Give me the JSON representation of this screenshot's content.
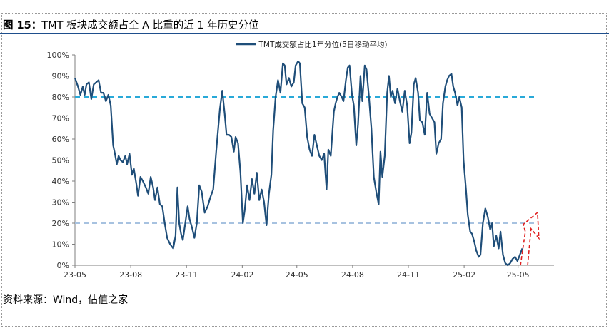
{
  "figure": {
    "label": "图 15：",
    "title": "TMT 板块成交额占全 A 比重的近 1 年历史分位",
    "source": "资料来源：Wind，估值之家"
  },
  "chart_data": {
    "type": "line",
    "title": "",
    "legend": {
      "position": "top-center"
    },
    "x_ticks": [
      "23-05",
      "23-08",
      "23-11",
      "24-02",
      "24-05",
      "24-08",
      "24-11",
      "25-02",
      "25-05"
    ],
    "x_tick_dates": [
      "2023-05-01",
      "2023-08-01",
      "2023-11-01",
      "2024-02-01",
      "2024-05-01",
      "2024-08-01",
      "2024-11-01",
      "2025-02-01",
      "2025-05-01"
    ],
    "y_ticks": [
      "0%",
      "10%",
      "20%",
      "30%",
      "40%",
      "50%",
      "60%",
      "70%",
      "80%",
      "90%",
      "100%"
    ],
    "ylim": [
      0,
      100
    ],
    "grid": false,
    "series": [
      {
        "name": "TMT成交额占比1年分位(5日移动平均)",
        "color": "#1f4e79",
        "points": [
          [
            "2023-05-01",
            89
          ],
          [
            "2023-05-06",
            85
          ],
          [
            "2023-05-10",
            81
          ],
          [
            "2023-05-14",
            85
          ],
          [
            "2023-05-17",
            81
          ],
          [
            "2023-05-20",
            86
          ],
          [
            "2023-05-24",
            87
          ],
          [
            "2023-05-28",
            79
          ],
          [
            "2023-06-01",
            86
          ],
          [
            "2023-06-05",
            87
          ],
          [
            "2023-06-09",
            88
          ],
          [
            "2023-06-13",
            82
          ],
          [
            "2023-06-17",
            82
          ],
          [
            "2023-06-21",
            78
          ],
          [
            "2023-06-25",
            81
          ],
          [
            "2023-06-29",
            76
          ],
          [
            "2023-07-03",
            57
          ],
          [
            "2023-07-06",
            53
          ],
          [
            "2023-07-09",
            48
          ],
          [
            "2023-07-12",
            52
          ],
          [
            "2023-07-15",
            50
          ],
          [
            "2023-07-19",
            49
          ],
          [
            "2023-07-23",
            52
          ],
          [
            "2023-07-26",
            48
          ],
          [
            "2023-07-30",
            53
          ],
          [
            "2023-08-03",
            43
          ],
          [
            "2023-08-06",
            46
          ],
          [
            "2023-08-10",
            39
          ],
          [
            "2023-08-13",
            33
          ],
          [
            "2023-08-17",
            42
          ],
          [
            "2023-08-21",
            40
          ],
          [
            "2023-08-26",
            37
          ],
          [
            "2023-08-30",
            34
          ],
          [
            "2023-09-03",
            42
          ],
          [
            "2023-09-07",
            37
          ],
          [
            "2023-09-10",
            31
          ],
          [
            "2023-09-14",
            37
          ],
          [
            "2023-09-18",
            29
          ],
          [
            "2023-09-22",
            28
          ],
          [
            "2023-09-26",
            20
          ],
          [
            "2023-09-30",
            13
          ],
          [
            "2023-10-05",
            10
          ],
          [
            "2023-10-10",
            8
          ],
          [
            "2023-10-14",
            14
          ],
          [
            "2023-10-17",
            37
          ],
          [
            "2023-10-20",
            20
          ],
          [
            "2023-10-23",
            15
          ],
          [
            "2023-10-26",
            12
          ],
          [
            "2023-10-30",
            20
          ],
          [
            "2023-11-03",
            28
          ],
          [
            "2023-11-06",
            22
          ],
          [
            "2023-11-10",
            18
          ],
          [
            "2023-11-14",
            13
          ],
          [
            "2023-11-18",
            20
          ],
          [
            "2023-11-22",
            38
          ],
          [
            "2023-11-26",
            35
          ],
          [
            "2023-12-01",
            25
          ],
          [
            "2023-12-06",
            28
          ],
          [
            "2023-12-10",
            32
          ],
          [
            "2023-12-15",
            36
          ],
          [
            "2023-12-20",
            54
          ],
          [
            "2023-12-26",
            74
          ],
          [
            "2023-12-30",
            83
          ],
          [
            "2024-01-03",
            72
          ],
          [
            "2024-01-06",
            62
          ],
          [
            "2024-01-10",
            62
          ],
          [
            "2024-01-14",
            61
          ],
          [
            "2024-01-18",
            54
          ],
          [
            "2024-01-21",
            61
          ],
          [
            "2024-01-25",
            58
          ],
          [
            "2024-01-29",
            44
          ],
          [
            "2024-02-02",
            20
          ],
          [
            "2024-02-05",
            26
          ],
          [
            "2024-02-09",
            38
          ],
          [
            "2024-02-13",
            31
          ],
          [
            "2024-02-17",
            41
          ],
          [
            "2024-02-21",
            34
          ],
          [
            "2024-02-25",
            44
          ],
          [
            "2024-02-29",
            31
          ],
          [
            "2024-03-04",
            36
          ],
          [
            "2024-03-08",
            30
          ],
          [
            "2024-03-12",
            19
          ],
          [
            "2024-03-16",
            34
          ],
          [
            "2024-03-20",
            43
          ],
          [
            "2024-03-23",
            64
          ],
          [
            "2024-03-27",
            80
          ],
          [
            "2024-03-31",
            88
          ],
          [
            "2024-04-04",
            82
          ],
          [
            "2024-04-08",
            96
          ],
          [
            "2024-04-11",
            95
          ],
          [
            "2024-04-14",
            86
          ],
          [
            "2024-04-18",
            89
          ],
          [
            "2024-04-22",
            85
          ],
          [
            "2024-04-26",
            87
          ],
          [
            "2024-04-29",
            95
          ],
          [
            "2024-05-03",
            97
          ],
          [
            "2024-05-06",
            96
          ],
          [
            "2024-05-10",
            77
          ],
          [
            "2024-05-14",
            75
          ],
          [
            "2024-05-18",
            61
          ],
          [
            "2024-05-22",
            55
          ],
          [
            "2024-05-26",
            52
          ],
          [
            "2024-05-30",
            62
          ],
          [
            "2024-06-03",
            57
          ],
          [
            "2024-06-07",
            52
          ],
          [
            "2024-06-11",
            50
          ],
          [
            "2024-06-15",
            53
          ],
          [
            "2024-06-19",
            36
          ],
          [
            "2024-06-22",
            55
          ],
          [
            "2024-06-26",
            52
          ],
          [
            "2024-07-01",
            73
          ],
          [
            "2024-07-04",
            77
          ],
          [
            "2024-07-07",
            80
          ],
          [
            "2024-07-10",
            82
          ],
          [
            "2024-07-14",
            80
          ],
          [
            "2024-07-17",
            78
          ],
          [
            "2024-07-21",
            88
          ],
          [
            "2024-07-24",
            94
          ],
          [
            "2024-07-27",
            95
          ],
          [
            "2024-07-31",
            81
          ],
          [
            "2024-08-03",
            76
          ],
          [
            "2024-08-07",
            57
          ],
          [
            "2024-08-10",
            67
          ],
          [
            "2024-08-14",
            90
          ],
          [
            "2024-08-17",
            78
          ],
          [
            "2024-08-21",
            95
          ],
          [
            "2024-08-24",
            93
          ],
          [
            "2024-08-28",
            80
          ],
          [
            "2024-09-01",
            65
          ],
          [
            "2024-09-05",
            42
          ],
          [
            "2024-09-09",
            35
          ],
          [
            "2024-09-13",
            29
          ],
          [
            "2024-09-16",
            54
          ],
          [
            "2024-09-19",
            42
          ],
          [
            "2024-09-23",
            52
          ],
          [
            "2024-09-27",
            82
          ],
          [
            "2024-09-30",
            90
          ],
          [
            "2024-10-03",
            80
          ],
          [
            "2024-10-06",
            83
          ],
          [
            "2024-10-10",
            77
          ],
          [
            "2024-10-14",
            84
          ],
          [
            "2024-10-18",
            78
          ],
          [
            "2024-10-22",
            73
          ],
          [
            "2024-10-26",
            83
          ],
          [
            "2024-10-30",
            76
          ],
          [
            "2024-11-03",
            58
          ],
          [
            "2024-11-06",
            63
          ],
          [
            "2024-11-10",
            86
          ],
          [
            "2024-11-13",
            89
          ],
          [
            "2024-11-17",
            82
          ],
          [
            "2024-11-20",
            69
          ],
          [
            "2024-11-24",
            68
          ],
          [
            "2024-11-28",
            62
          ],
          [
            "2024-12-02",
            82
          ],
          [
            "2024-12-06",
            72
          ],
          [
            "2024-12-10",
            70
          ],
          [
            "2024-12-14",
            68
          ],
          [
            "2024-12-17",
            53
          ],
          [
            "2024-12-21",
            58
          ],
          [
            "2024-12-25",
            60
          ],
          [
            "2024-12-28",
            77
          ],
          [
            "2025-01-01",
            85
          ],
          [
            "2025-01-04",
            88
          ],
          [
            "2025-01-07",
            90
          ],
          [
            "2025-01-11",
            91
          ],
          [
            "2025-01-14",
            85
          ],
          [
            "2025-01-17",
            82
          ],
          [
            "2025-01-21",
            76
          ],
          [
            "2025-01-24",
            80
          ],
          [
            "2025-01-28",
            75
          ],
          [
            "2025-01-31",
            50
          ],
          [
            "2025-02-04",
            36
          ],
          [
            "2025-02-07",
            24
          ],
          [
            "2025-02-11",
            16
          ],
          [
            "2025-02-14",
            15
          ],
          [
            "2025-02-18",
            11
          ],
          [
            "2025-02-21",
            7
          ],
          [
            "2025-02-25",
            4
          ],
          [
            "2025-02-28",
            5
          ],
          [
            "2025-03-04",
            20
          ],
          [
            "2025-03-08",
            27
          ],
          [
            "2025-03-12",
            23
          ],
          [
            "2025-03-16",
            17
          ],
          [
            "2025-03-19",
            20
          ],
          [
            "2025-03-22",
            9
          ],
          [
            "2025-03-26",
            14
          ],
          [
            "2025-03-30",
            8
          ],
          [
            "2025-04-02",
            16
          ],
          [
            "2025-04-06",
            5
          ],
          [
            "2025-04-10",
            1
          ],
          [
            "2025-04-14",
            0
          ],
          [
            "2025-04-18",
            1
          ],
          [
            "2025-04-22",
            3
          ],
          [
            "2025-04-26",
            4
          ],
          [
            "2025-04-30",
            2
          ],
          [
            "2025-05-04",
            5
          ],
          [
            "2025-05-08",
            8
          ]
        ]
      }
    ],
    "reference_lines": [
      {
        "value": 80,
        "color": "#29a9d8",
        "style": "dashed",
        "from": "2023-05-01",
        "to": "2025-06-01"
      },
      {
        "value": 20,
        "color": "#a7c2e0",
        "style": "dashed",
        "from": "2023-05-01",
        "to": "2025-06-01"
      }
    ],
    "annotations": [
      {
        "type": "dashed-arrow",
        "color": "#e02020",
        "description_points": [
          [
            "2025-05-05",
            0
          ],
          [
            "2025-05-20",
            16
          ],
          [
            "2025-06-02",
            23
          ]
        ]
      }
    ]
  }
}
